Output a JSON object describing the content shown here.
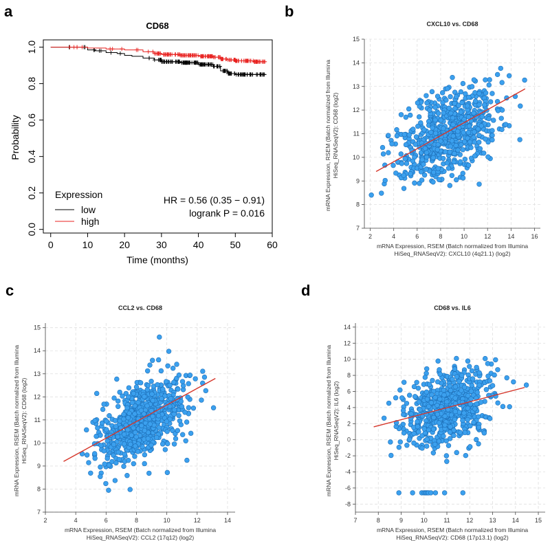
{
  "panel_letters": [
    "a",
    "b",
    "c",
    "d"
  ],
  "chart_data": [
    {
      "id": "a",
      "type": "line",
      "subtype": "kaplan-meier",
      "title": "CD68",
      "xlabel": "Time (months)",
      "ylabel": "Probability",
      "xlim": [
        -2,
        60
      ],
      "ylim": [
        -0.02,
        1.04
      ],
      "xticks": [
        0,
        10,
        20,
        30,
        40,
        50,
        60
      ],
      "yticks": [
        0.0,
        0.2,
        0.4,
        0.6,
        0.8,
        1.0
      ],
      "ytick_labels": [
        "0.0",
        "0.2",
        "0.4",
        "0.6",
        "0.8",
        "1.0"
      ],
      "legend_title": "Expression",
      "legend_position": "bottom-left",
      "series": [
        {
          "name": "low",
          "color": "#000000",
          "x": [
            0,
            8,
            10,
            12,
            15,
            18,
            20,
            22,
            25,
            28,
            30,
            35,
            40,
            44,
            46,
            48,
            50,
            55,
            58
          ],
          "y": [
            1.0,
            1.0,
            0.985,
            0.98,
            0.97,
            0.965,
            0.955,
            0.95,
            0.94,
            0.93,
            0.92,
            0.915,
            0.905,
            0.895,
            0.87,
            0.855,
            0.85,
            0.85,
            0.85
          ]
        },
        {
          "name": "high",
          "color": "#e8211f",
          "x": [
            0,
            10,
            15,
            20,
            25,
            28,
            30,
            35,
            40,
            44,
            46,
            48,
            50,
            55,
            58
          ],
          "y": [
            1.0,
            0.995,
            0.99,
            0.985,
            0.975,
            0.965,
            0.96,
            0.955,
            0.95,
            0.945,
            0.935,
            0.93,
            0.925,
            0.92,
            0.92
          ]
        }
      ],
      "annotations": [
        "HR = 0.56 (0.35 − 0.91)",
        "logrank P = 0.016"
      ]
    },
    {
      "id": "b",
      "type": "scatter",
      "title": "CXCL10 vs. CD68",
      "xlabel": [
        "mRNA Expression, RSEM (Batch normalized from Illumina",
        "HiSeq_RNASeqV2): CXCL10 (4q21.1) (log2)"
      ],
      "ylabel": [
        "mRNA Expression, RSEM (Batch normalized from Illumina",
        "HiSeq_RNASeqV2): CD68 (log2)"
      ],
      "xlim": [
        1.5,
        16.5
      ],
      "ylim": [
        7,
        15
      ],
      "xticks": [
        2,
        4,
        6,
        8,
        10,
        12,
        14,
        16
      ],
      "yticks": [
        7,
        8,
        9,
        10,
        11,
        12,
        13,
        14,
        15
      ],
      "point_color": "#3ba0ee",
      "n_points": 1000,
      "x_mean": 8.6,
      "x_sd": 2.2,
      "y_mean": 11.0,
      "y_sd": 0.95,
      "correlation": 0.5,
      "trend_line": {
        "x": [
          2.5,
          15.2
        ],
        "y": [
          9.4,
          12.9
        ],
        "color": "#d6362a"
      }
    },
    {
      "id": "c",
      "type": "scatter",
      "title": "CCL2 vs. CD68",
      "xlabel": [
        "mRNA Expression, RSEM (Batch normalized from Illumina",
        "HiSeq_RNASeqV2): CCL2 (17q12) (log2)"
      ],
      "ylabel": [
        "mRNA Expression, RSEM (Batch normalized from Illumina",
        "HiSeq_RNASeqV2): CD68 (log2)"
      ],
      "xlim": [
        2,
        14.5
      ],
      "ylim": [
        7,
        15.2
      ],
      "xticks": [
        2,
        4,
        6,
        8,
        10,
        12,
        14
      ],
      "yticks": [
        7,
        8,
        9,
        10,
        11,
        12,
        13,
        14,
        15
      ],
      "point_color": "#3ba0ee",
      "n_points": 1000,
      "x_mean": 8.4,
      "x_sd": 1.45,
      "y_mean": 11.0,
      "y_sd": 0.95,
      "correlation": 0.48,
      "trend_line": {
        "x": [
          3.2,
          13.2
        ],
        "y": [
          9.2,
          12.8
        ],
        "color": "#d6362a"
      }
    },
    {
      "id": "d",
      "type": "scatter",
      "title": "CD68 vs. IL6",
      "xlabel": [
        "mRNA Expression, RSEM (Batch normalized from Illumina",
        "HiSeq_RNASeqV2): CD68 (17p13.1) (log2)"
      ],
      "ylabel": [
        "mRNA Expression, RSEM (Batch normalized from Illumina",
        "HiSeq_RNASeqV2): IL6 (log2)"
      ],
      "xlim": [
        7,
        15.3
      ],
      "ylim": [
        -9,
        14.5
      ],
      "xticks": [
        7,
        8,
        9,
        10,
        11,
        12,
        13,
        14,
        15
      ],
      "yticks": [
        -8,
        -6,
        -4,
        -2,
        0,
        2,
        4,
        6,
        8,
        10,
        12,
        14
      ],
      "point_color": "#3ba0ee",
      "n_points": 1000,
      "x_mean": 11.0,
      "x_sd": 0.95,
      "y_mean": 4.0,
      "y_sd": 2.4,
      "correlation": 0.35,
      "trend_line": {
        "x": [
          7.8,
          14.4
        ],
        "y": [
          1.6,
          6.5
        ],
        "color": "#d6362a"
      },
      "floor_points": {
        "y": -6.6,
        "x": [
          8.9,
          9.5,
          9.9,
          10.0,
          10.05,
          10.1,
          10.15,
          10.2,
          10.3,
          10.5,
          10.9,
          11.7
        ]
      }
    }
  ]
}
